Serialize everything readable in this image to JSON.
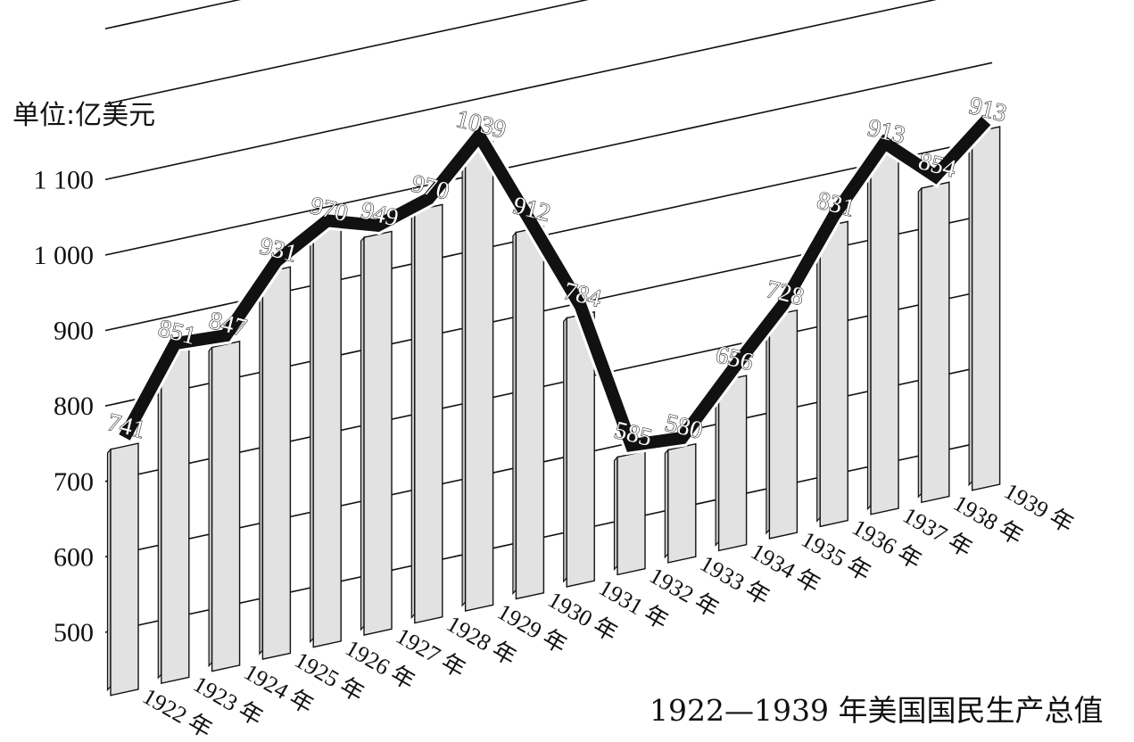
{
  "chart_data": {
    "type": "bar",
    "title": "1922—1939 年美国国民生产总值",
    "unit_label": "单位:亿美元",
    "categories": [
      "1922 年",
      "1923 年",
      "1924 年",
      "1925 年",
      "1926 年",
      "1927 年",
      "1928 年",
      "1929 年",
      "1930 年",
      "1931 年",
      "1932 年",
      "1933 年",
      "1934 年",
      "1935 年",
      "1936 年",
      "1937 年",
      "1938 年",
      "1939 年"
    ],
    "values": [
      741,
      851,
      847,
      931,
      970,
      949,
      970,
      1039,
      912,
      784,
      585,
      580,
      656,
      728,
      831,
      913,
      854,
      913
    ],
    "data_labels": [
      "741",
      "851",
      "847",
      "931",
      "970",
      "949",
      "970",
      "1039",
      "912",
      "784",
      "585",
      "580",
      "656",
      "728",
      "831",
      "913",
      "854",
      "913"
    ],
    "y_ticks": [
      "500",
      "600",
      "700",
      "800",
      "900",
      "1 000",
      "1 100"
    ],
    "y_tick_values": [
      500,
      600,
      700,
      800,
      900,
      1000,
      1100
    ],
    "ylim": [
      500,
      1100
    ],
    "bar_color": "#e2e2e2",
    "line_color": "#111111",
    "grid": true,
    "legend": "none"
  }
}
